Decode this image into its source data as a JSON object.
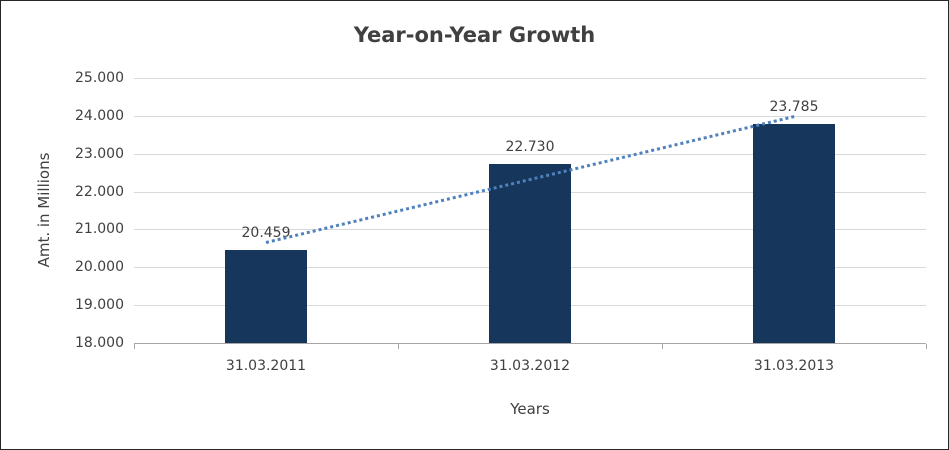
{
  "chart_data": {
    "type": "bar",
    "title": "Year-on-Year Growth",
    "xlabel": "Years",
    "ylabel": "Amt. in Millions",
    "categories": [
      "31.03.2011",
      "31.03.2012",
      "31.03.2013"
    ],
    "values": [
      20.459,
      22.73,
      23.785
    ],
    "value_labels": [
      "20.459",
      "22.730",
      "23.785"
    ],
    "ylim": [
      18,
      25
    ],
    "ytick_step": 1,
    "ytick_labels": [
      "18.000",
      "19.000",
      "20.000",
      "21.000",
      "22.000",
      "23.000",
      "24.000",
      "25.000"
    ],
    "grid": true,
    "legend": "none",
    "trendline": "linear-dotted",
    "colors": {
      "bar": "#16365C",
      "trend": "#4F81BD",
      "grid": "#D9D9D9",
      "axis": "#A6A6A6",
      "text": "#404040",
      "border": "#262626"
    }
  }
}
